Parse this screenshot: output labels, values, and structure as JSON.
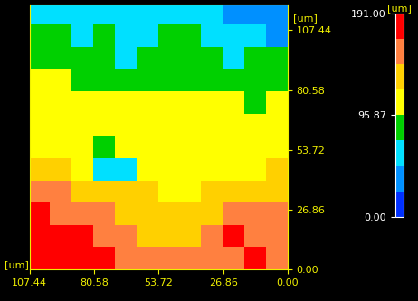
{
  "chart_data": {
    "type": "heatmap",
    "xlabel": "[um]",
    "ylabel": "[um]",
    "xlim": [
      107.44,
      0
    ],
    "ylim": [
      0,
      119
    ],
    "xticks": [
      107.44,
      80.58,
      53.72,
      26.86,
      {
        "value": 0,
        "label": "0.00"
      }
    ],
    "yticks": [
      {
        "value": 0,
        "label": "0.00"
      },
      26.86,
      53.72,
      80.58,
      107.44
    ],
    "x_edges": [
      0,
      9,
      18,
      27,
      36,
      45,
      54,
      63,
      72,
      81,
      90,
      99,
      107.44
    ],
    "y_edges": [
      0,
      10,
      20,
      30,
      40,
      50,
      60,
      70,
      80,
      90,
      100,
      110,
      119
    ],
    "cells": [
      [
        165,
        170,
        160,
        150,
        155,
        150,
        160,
        165,
        175,
        180,
        185,
        188
      ],
      [
        160,
        165,
        170,
        150,
        140,
        135,
        140,
        155,
        165,
        170,
        178,
        182
      ],
      [
        150,
        155,
        160,
        140,
        125,
        125,
        130,
        135,
        150,
        160,
        165,
        170
      ],
      [
        130,
        135,
        130,
        120,
        115,
        118,
        120,
        125,
        130,
        140,
        145,
        150
      ],
      [
        120,
        115,
        110,
        115,
        112,
        110,
        115,
        55,
        60,
        115,
        120,
        125
      ],
      [
        110,
        115,
        105,
        110,
        115,
        110,
        112,
        100,
        90,
        110,
        115,
        118
      ],
      [
        105,
        110,
        100,
        105,
        110,
        108,
        110,
        105,
        100,
        112,
        110,
        115
      ],
      [
        100,
        95,
        100,
        105,
        102,
        100,
        105,
        100,
        98,
        105,
        108,
        110
      ],
      [
        90,
        85,
        88,
        92,
        95,
        90,
        95,
        92,
        88,
        95,
        100,
        98
      ],
      [
        80,
        75,
        70,
        85,
        82,
        80,
        75,
        60,
        85,
        80,
        85,
        82
      ],
      [
        45,
        50,
        60,
        70,
        75,
        72,
        68,
        65,
        75,
        70,
        72,
        75
      ],
      [
        30,
        25,
        40,
        50,
        55,
        60,
        55,
        50,
        60,
        55,
        58,
        50
      ]
    ],
    "colors": [
      "#0030ff",
      "#0090ff",
      "#00e0ff",
      "#00d000",
      "#ffff00",
      "#ffd000",
      "#ff8040",
      "#ff0000"
    ],
    "colorbar": {
      "label": "[um]",
      "range": [
        0,
        191
      ],
      "bounds": [
        0,
        23.88,
        47.77,
        71.65,
        95.87,
        119.41,
        143.29,
        167.18,
        191.0
      ],
      "ticks": [
        {
          "value": 0,
          "label": "0.00"
        },
        95.87,
        {
          "value": 191,
          "label": "191.00"
        }
      ]
    }
  }
}
